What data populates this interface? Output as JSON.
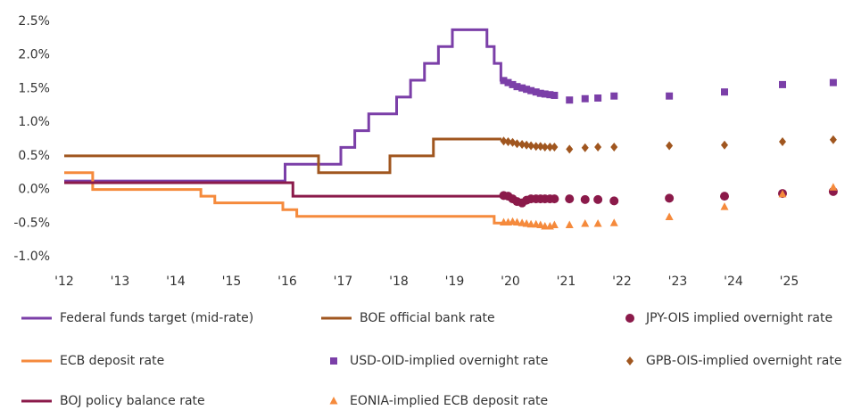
{
  "chart_data": {
    "type": "line",
    "xlim": [
      2012,
      2026
    ],
    "xticks": [
      {
        "value": 2012,
        "label": "'12"
      },
      {
        "value": 2013,
        "label": "'13"
      },
      {
        "value": 2014,
        "label": "'14"
      },
      {
        "value": 2015,
        "label": "'15"
      },
      {
        "value": 2016,
        "label": "'16"
      },
      {
        "value": 2017,
        "label": "'17"
      },
      {
        "value": 2018,
        "label": "'18"
      },
      {
        "value": 2019,
        "label": "'19"
      },
      {
        "value": 2020,
        "label": "'20"
      },
      {
        "value": 2021,
        "label": "'21"
      },
      {
        "value": 2022,
        "label": "'22"
      },
      {
        "value": 2023,
        "label": "'23"
      },
      {
        "value": 2024,
        "label": "'24"
      },
      {
        "value": 2025,
        "label": "'25"
      }
    ],
    "ylim": [
      -1,
      2.5
    ],
    "yticks": [
      {
        "value": 2.5,
        "label": "2.5%"
      },
      {
        "value": 2.0,
        "label": "2.0%"
      },
      {
        "value": 1.5,
        "label": "1.5%"
      },
      {
        "value": 1.0,
        "label": "1.0%"
      },
      {
        "value": 0.5,
        "label": "0.5%"
      },
      {
        "value": 0.0,
        "label": "0.0%"
      },
      {
        "value": -0.5,
        "label": "-0.5%"
      },
      {
        "value": -1.0,
        "label": "-1.0%"
      }
    ],
    "series": [
      {
        "name": "Federal funds target (mid-rate)",
        "color": "#7b3fa8",
        "style": "step",
        "x": [
          2012,
          2015.96,
          2016.96,
          2017.21,
          2017.46,
          2017.96,
          2018.21,
          2018.46,
          2018.71,
          2018.96,
          2019.58,
          2019.71,
          2019.83,
          2019.9
        ],
        "values": [
          0.125,
          0.375,
          0.625,
          0.875,
          1.125,
          1.375,
          1.625,
          1.875,
          2.125,
          2.375,
          2.125,
          1.875,
          1.625,
          1.625
        ]
      },
      {
        "name": "BOE official bank rate",
        "color": "#a0561f",
        "style": "step",
        "x": [
          2012,
          2016.56,
          2017.84,
          2018.62,
          2019.84
        ],
        "values": [
          0.5,
          0.25,
          0.5,
          0.75,
          0.75
        ]
      },
      {
        "name": "JPY-OIS implied overnight rate",
        "color": "#8b1a4a",
        "style": "marker",
        "marker": "circle",
        "x": [
          2019.88,
          2019.96,
          2020.04,
          2020.12,
          2020.21,
          2020.29,
          2020.37,
          2020.46,
          2020.54,
          2020.62,
          2020.71,
          2020.79,
          2021.06,
          2021.34,
          2021.57,
          2021.86,
          2022.85,
          2023.84,
          2024.88,
          2025.79
        ],
        "values": [
          -0.09,
          -0.1,
          -0.14,
          -0.18,
          -0.2,
          -0.16,
          -0.14,
          -0.14,
          -0.14,
          -0.14,
          -0.14,
          -0.14,
          -0.14,
          -0.15,
          -0.15,
          -0.17,
          -0.13,
          -0.1,
          -0.06,
          -0.03
        ]
      },
      {
        "name": "ECB deposit rate",
        "color": "#f58a3c",
        "style": "step",
        "x": [
          2012,
          2012.51,
          2014.45,
          2014.7,
          2015.92,
          2016.17,
          2019.71,
          2019.84
        ],
        "values": [
          0.25,
          0,
          -0.1,
          -0.2,
          -0.3,
          -0.4,
          -0.5,
          -0.5
        ]
      },
      {
        "name": "USD-OID-implied overnight rate",
        "color": "#7b3fa8",
        "style": "marker",
        "marker": "square",
        "x": [
          2019.88,
          2019.96,
          2020.04,
          2020.12,
          2020.21,
          2020.29,
          2020.37,
          2020.46,
          2020.54,
          2020.62,
          2020.71,
          2020.79,
          2021.06,
          2021.34,
          2021.57,
          2021.86,
          2022.85,
          2023.84,
          2024.88,
          2025.79
        ],
        "values": [
          1.62,
          1.59,
          1.56,
          1.53,
          1.51,
          1.49,
          1.47,
          1.45,
          1.43,
          1.42,
          1.41,
          1.4,
          1.33,
          1.35,
          1.36,
          1.39,
          1.39,
          1.45,
          1.56,
          1.59
        ]
      },
      {
        "name": "GPB-OIS-implied overnight rate",
        "color": "#a0561f",
        "style": "marker",
        "marker": "diamond",
        "x": [
          2019.88,
          2019.96,
          2020.04,
          2020.12,
          2020.21,
          2020.29,
          2020.37,
          2020.46,
          2020.54,
          2020.62,
          2020.71,
          2020.79,
          2021.06,
          2021.34,
          2021.57,
          2021.86,
          2022.85,
          2023.84,
          2024.88,
          2025.79
        ],
        "values": [
          0.72,
          0.71,
          0.7,
          0.68,
          0.67,
          0.66,
          0.65,
          0.64,
          0.64,
          0.63,
          0.63,
          0.63,
          0.6,
          0.62,
          0.63,
          0.63,
          0.65,
          0.66,
          0.71,
          0.74
        ]
      },
      {
        "name": "BOJ policy balance rate",
        "color": "#8b1a4a",
        "style": "step",
        "x": [
          2012,
          2016.1,
          2019.84
        ],
        "values": [
          0.1,
          -0.1,
          -0.1
        ]
      },
      {
        "name": "EONIA-implied ECB deposit rate",
        "color": "#f58a3c",
        "style": "marker",
        "marker": "triangle",
        "x": [
          2019.88,
          2019.96,
          2020.04,
          2020.12,
          2020.21,
          2020.29,
          2020.37,
          2020.46,
          2020.54,
          2020.62,
          2020.71,
          2020.79,
          2021.06,
          2021.34,
          2021.57,
          2021.86,
          2022.85,
          2023.84,
          2024.88,
          2025.79
        ],
        "values": [
          -0.49,
          -0.49,
          -0.48,
          -0.49,
          -0.5,
          -0.51,
          -0.52,
          -0.52,
          -0.53,
          -0.55,
          -0.55,
          -0.53,
          -0.53,
          -0.51,
          -0.51,
          -0.5,
          -0.41,
          -0.26,
          -0.07,
          0.03
        ]
      }
    ]
  }
}
